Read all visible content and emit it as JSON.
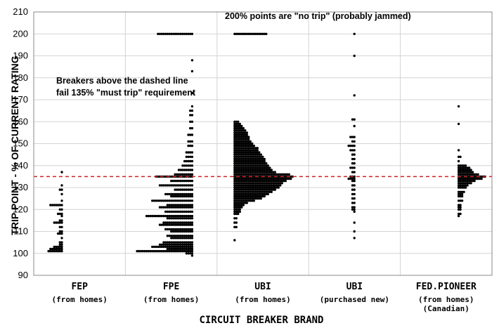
{
  "chart_data": {
    "type": "scatter",
    "ylabel": "TRIP POINT - % OF CURRENT RATING",
    "xlabel": "CIRCUIT BREAKER BRAND",
    "ylim": [
      90,
      210
    ],
    "yticks": [
      90,
      100,
      110,
      120,
      130,
      140,
      150,
      160,
      170,
      180,
      190,
      200,
      210
    ],
    "grid": true,
    "reference_line": {
      "y": 135,
      "style": "dashed",
      "color": "#cc2222"
    },
    "annotations": [
      "200% points are \"no trip\" (probably jammed)",
      "Breakers above the dashed line",
      "fail 135% \"must trip\" requirement"
    ],
    "categories": [
      {
        "label": "FEP",
        "sub": [
          "(from homes)"
        ]
      },
      {
        "label": "FPE",
        "sub": [
          "(from homes)"
        ]
      },
      {
        "label": "UBI",
        "sub": [
          "(from homes)"
        ]
      },
      {
        "label": "UBI",
        "sub": [
          "(purchased new)"
        ]
      },
      {
        "label": "FED.PIONEER",
        "sub": [
          "(from homes)",
          "(Canadian)"
        ]
      }
    ],
    "series": [
      {
        "category": "FEP (from homes)",
        "rows": [
          [
            137,
            1
          ],
          [
            131,
            1
          ],
          [
            129,
            2
          ],
          [
            127,
            1
          ],
          [
            124,
            1
          ],
          [
            122,
            7
          ],
          [
            120,
            2
          ],
          [
            118,
            3
          ],
          [
            117,
            1
          ],
          [
            115,
            2
          ],
          [
            114,
            5
          ],
          [
            112,
            2
          ],
          [
            110,
            2
          ],
          [
            109,
            3
          ],
          [
            107,
            1
          ],
          [
            105,
            2
          ],
          [
            104,
            2
          ],
          [
            103,
            5
          ],
          [
            102,
            7
          ],
          [
            101,
            8
          ]
        ]
      },
      {
        "category": "FPE (from homes)",
        "rows": [
          [
            200,
            19
          ],
          [
            188,
            1
          ],
          [
            183,
            1
          ],
          [
            173,
            1
          ],
          [
            167,
            1
          ],
          [
            165,
            2
          ],
          [
            163,
            2
          ],
          [
            160,
            2
          ],
          [
            157,
            2
          ],
          [
            154,
            3
          ],
          [
            151,
            3
          ],
          [
            149,
            3
          ],
          [
            146,
            4
          ],
          [
            144,
            4
          ],
          [
            142,
            5
          ],
          [
            140,
            6
          ],
          [
            138,
            8
          ],
          [
            136,
            10
          ],
          [
            135,
            20
          ],
          [
            133,
            12
          ],
          [
            131,
            18
          ],
          [
            129,
            10
          ],
          [
            127,
            15
          ],
          [
            126,
            12
          ],
          [
            124,
            22
          ],
          [
            122,
            14
          ],
          [
            121,
            18
          ],
          [
            119,
            15
          ],
          [
            117,
            25
          ],
          [
            116,
            14
          ],
          [
            114,
            16
          ],
          [
            113,
            18
          ],
          [
            111,
            15
          ],
          [
            110,
            12
          ],
          [
            108,
            14
          ],
          [
            107,
            12
          ],
          [
            105,
            16
          ],
          [
            104,
            18
          ],
          [
            103,
            22
          ],
          [
            102,
            14
          ],
          [
            101,
            30
          ],
          [
            100,
            4
          ],
          [
            99,
            1
          ]
        ]
      },
      {
        "category": "UBI (from homes)",
        "rows": [
          [
            200,
            19
          ],
          [
            160,
            3
          ],
          [
            159,
            4
          ],
          [
            158,
            5
          ],
          [
            157,
            6
          ],
          [
            156,
            7
          ],
          [
            155,
            8
          ],
          [
            154,
            8
          ],
          [
            153,
            9
          ],
          [
            152,
            9
          ],
          [
            151,
            10
          ],
          [
            150,
            11
          ],
          [
            149,
            12
          ],
          [
            148,
            14
          ],
          [
            147,
            14
          ],
          [
            146,
            15
          ],
          [
            145,
            16
          ],
          [
            144,
            17
          ],
          [
            143,
            18
          ],
          [
            142,
            18
          ],
          [
            141,
            19
          ],
          [
            140,
            20
          ],
          [
            139,
            21
          ],
          [
            138,
            22
          ],
          [
            137,
            24
          ],
          [
            136,
            32
          ],
          [
            135,
            34
          ],
          [
            134,
            33
          ],
          [
            133,
            30
          ],
          [
            132,
            28
          ],
          [
            131,
            27
          ],
          [
            130,
            26
          ],
          [
            129,
            24
          ],
          [
            128,
            22
          ],
          [
            127,
            20
          ],
          [
            126,
            18
          ],
          [
            125,
            16
          ],
          [
            124,
            12
          ],
          [
            123,
            8
          ],
          [
            122,
            6
          ],
          [
            121,
            5
          ],
          [
            120,
            4
          ],
          [
            119,
            4
          ],
          [
            118,
            3
          ],
          [
            116,
            2
          ],
          [
            114,
            2
          ],
          [
            112,
            2
          ],
          [
            106,
            1
          ]
        ]
      },
      {
        "category": "UBI (purchased new)",
        "rows": [
          [
            200,
            1
          ],
          [
            190,
            1
          ],
          [
            172,
            1
          ],
          [
            161,
            2
          ],
          [
            158,
            1
          ],
          [
            153,
            3
          ],
          [
            151,
            2
          ],
          [
            149,
            4
          ],
          [
            147,
            3
          ],
          [
            145,
            2
          ],
          [
            143,
            2
          ],
          [
            141,
            2
          ],
          [
            139,
            3
          ],
          [
            137,
            2
          ],
          [
            135,
            3
          ],
          [
            134,
            4
          ],
          [
            133,
            2
          ],
          [
            131,
            2
          ],
          [
            129,
            2
          ],
          [
            127,
            2
          ],
          [
            125,
            2
          ],
          [
            123,
            2
          ],
          [
            121,
            2
          ],
          [
            120,
            2
          ],
          [
            119,
            1
          ],
          [
            114,
            1
          ],
          [
            110,
            1
          ],
          [
            107,
            1
          ]
        ]
      },
      {
        "category": "FED.PIONEER (from homes) (Canadian)",
        "rows": [
          [
            167,
            1
          ],
          [
            159,
            1
          ],
          [
            147,
            1
          ],
          [
            144,
            2
          ],
          [
            142,
            1
          ],
          [
            140,
            5
          ],
          [
            139,
            7
          ],
          [
            138,
            8
          ],
          [
            137,
            9
          ],
          [
            136,
            12
          ],
          [
            135,
            16
          ],
          [
            134,
            14
          ],
          [
            133,
            10
          ],
          [
            132,
            8
          ],
          [
            131,
            6
          ],
          [
            130,
            5
          ],
          [
            128,
            4
          ],
          [
            127,
            3
          ],
          [
            126,
            3
          ],
          [
            124,
            3
          ],
          [
            122,
            2
          ],
          [
            121,
            2
          ],
          [
            120,
            2
          ],
          [
            118,
            2
          ],
          [
            117,
            1
          ]
        ]
      }
    ]
  }
}
